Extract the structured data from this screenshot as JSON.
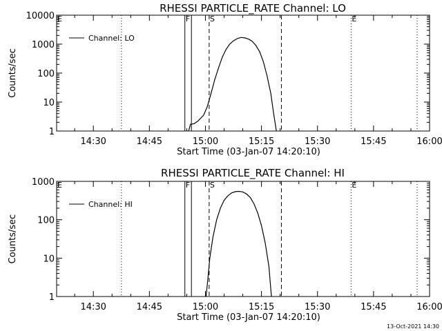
{
  "footer_stamp": "13-Oct-2021 14:30",
  "chart_data": [
    {
      "type": "line",
      "title": "RHESSI PARTICLE_RATE Channel: LO",
      "xlabel": "Start Time (03-Jan-07 14:20:10)",
      "ylabel": "Counts/sec",
      "y_scale": "log",
      "ylim": [
        1,
        10000
      ],
      "y_ticks": [
        {
          "value": 10000,
          "label": "10000"
        },
        {
          "value": 1000,
          "label": "1000"
        },
        {
          "value": 100,
          "label": "100"
        },
        {
          "value": 10,
          "label": "10"
        },
        {
          "value": 1,
          "label": "1"
        }
      ],
      "xlim": [
        "14:20:10",
        "16:00:00"
      ],
      "x_ticks": [
        "14:30",
        "14:45",
        "15:00",
        "15:15",
        "15:30",
        "15:45",
        "16:00"
      ],
      "legend": {
        "position": "top-left",
        "entries": [
          "Channel: LO"
        ]
      },
      "markers": [
        {
          "label": "E",
          "time": "14:20:10",
          "style": "dotted"
        },
        {
          "label": "",
          "time": "14:37:30",
          "style": "dotted"
        },
        {
          "label": "F",
          "time": "14:54:30",
          "style": "solid"
        },
        {
          "label": "",
          "time": "14:56:15",
          "style": "solid"
        },
        {
          "label": "S",
          "time": "15:01:00",
          "style": "dashed"
        },
        {
          "label": "",
          "time": "15:20:20",
          "style": "dashed"
        },
        {
          "label": "E",
          "time": "15:39:00",
          "style": "dotted"
        },
        {
          "label": "",
          "time": "15:56:40",
          "style": "dotted"
        }
      ],
      "series": [
        {
          "name": "Channel: LO",
          "points": [
            [
              "14:55:30",
              1
            ],
            [
              "14:56:00",
              1.7
            ],
            [
              "14:57:00",
              1.8
            ],
            [
              "14:58:00",
              2.2
            ],
            [
              "14:59:30",
              3.5
            ],
            [
              "15:00:30",
              7
            ],
            [
              "15:01:30",
              20
            ],
            [
              "15:02:30",
              60
            ],
            [
              "15:03:30",
              150
            ],
            [
              "15:04:30",
              350
            ],
            [
              "15:05:30",
              650
            ],
            [
              "15:06:30",
              1000
            ],
            [
              "15:07:30",
              1300
            ],
            [
              "15:08:30",
              1550
            ],
            [
              "15:09:30",
              1700
            ],
            [
              "15:10:30",
              1650
            ],
            [
              "15:11:30",
              1500
            ],
            [
              "15:12:30",
              1250
            ],
            [
              "15:13:30",
              900
            ],
            [
              "15:14:30",
              550
            ],
            [
              "15:15:30",
              250
            ],
            [
              "15:16:30",
              80
            ],
            [
              "15:17:30",
              20
            ],
            [
              "15:18:15",
              4
            ],
            [
              "15:19:00",
              1
            ]
          ]
        }
      ]
    },
    {
      "type": "line",
      "title": "RHESSI PARTICLE_RATE Channel: HI",
      "xlabel": "Start Time (03-Jan-07 14:20:10)",
      "ylabel": "Counts/sec",
      "y_scale": "log",
      "ylim": [
        1,
        1000
      ],
      "y_ticks": [
        {
          "value": 1000,
          "label": "1000"
        },
        {
          "value": 100,
          "label": "100"
        },
        {
          "value": 10,
          "label": "10"
        },
        {
          "value": 1,
          "label": "1"
        }
      ],
      "xlim": [
        "14:20:10",
        "16:00:00"
      ],
      "x_ticks": [
        "14:30",
        "14:45",
        "15:00",
        "15:15",
        "15:30",
        "15:45",
        "16:00"
      ],
      "legend": {
        "position": "top-left",
        "entries": [
          "Channel: HI"
        ]
      },
      "markers": [
        {
          "label": "E",
          "time": "14:20:10",
          "style": "dotted"
        },
        {
          "label": "",
          "time": "14:37:30",
          "style": "dotted"
        },
        {
          "label": "F",
          "time": "14:54:30",
          "style": "solid"
        },
        {
          "label": "",
          "time": "14:56:15",
          "style": "solid"
        },
        {
          "label": "S",
          "time": "15:01:00",
          "style": "dashed"
        },
        {
          "label": "",
          "time": "15:20:20",
          "style": "dashed"
        },
        {
          "label": "E",
          "time": "15:39:00",
          "style": "dotted"
        },
        {
          "label": "",
          "time": "15:56:40",
          "style": "dotted"
        }
      ],
      "series": [
        {
          "name": "Channel: HI",
          "points": [
            [
              "15:00:10",
              1
            ],
            [
              "15:00:40",
              3
            ],
            [
              "15:01:10",
              10
            ],
            [
              "15:02:00",
              35
            ],
            [
              "15:03:00",
              100
            ],
            [
              "15:04:00",
              200
            ],
            [
              "15:05:00",
              320
            ],
            [
              "15:06:00",
              420
            ],
            [
              "15:07:00",
              500
            ],
            [
              "15:08:00",
              540
            ],
            [
              "15:09:00",
              550
            ],
            [
              "15:10:00",
              530
            ],
            [
              "15:11:00",
              470
            ],
            [
              "15:12:00",
              380
            ],
            [
              "15:13:00",
              260
            ],
            [
              "15:14:00",
              150
            ],
            [
              "15:15:00",
              70
            ],
            [
              "15:16:00",
              25
            ],
            [
              "15:17:00",
              6
            ],
            [
              "15:17:40",
              1
            ]
          ]
        }
      ]
    }
  ]
}
